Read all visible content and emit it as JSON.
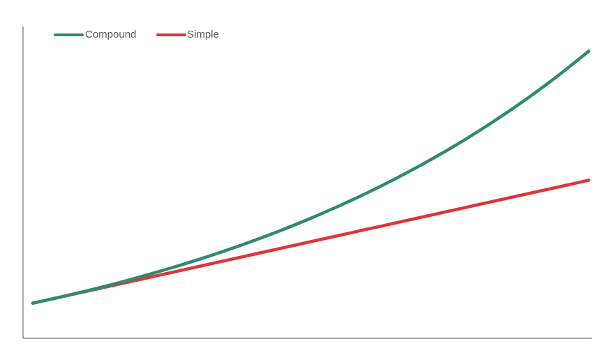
{
  "chart_data": {
    "type": "line",
    "title": "",
    "xlabel": "",
    "ylabel": "",
    "x": [
      0,
      1,
      2,
      3,
      4,
      5,
      6,
      7,
      8,
      9,
      10,
      11,
      12,
      13,
      14,
      15,
      16,
      17,
      18,
      19,
      20
    ],
    "series": [
      {
        "name": "Compound",
        "color": "#2e8b6e",
        "values": [
          100,
          107,
          114.5,
          122.5,
          131.1,
          140.3,
          150.1,
          160.6,
          171.8,
          183.8,
          196.7,
          210.5,
          225.2,
          241,
          257.9,
          275.9,
          295.2,
          315.9,
          338,
          361.7,
          387
        ]
      },
      {
        "name": "Simple",
        "color": "#e0333a",
        "values": [
          100,
          107,
          114,
          121,
          128,
          135,
          142,
          149,
          156,
          163,
          170,
          177,
          184,
          191,
          198,
          205,
          212,
          219,
          226,
          233,
          240
        ]
      }
    ],
    "xlim": [
      0,
      20
    ],
    "ylim": [
      60,
      415
    ],
    "grid": false,
    "legend_position": "top-left",
    "axes_visible": [
      "left",
      "bottom"
    ],
    "tick_labels_visible": false
  }
}
